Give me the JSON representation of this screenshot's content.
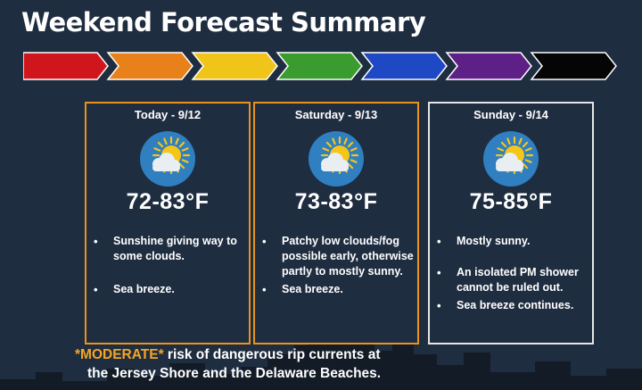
{
  "title": "Weekend Forecast Summary",
  "arrow_colors": [
    "#d0161d",
    "#e8811a",
    "#f0c419",
    "#3a9b2f",
    "#1f48c4",
    "#5e1f86",
    "#050505"
  ],
  "cards": [
    {
      "day": "Today - 9/12",
      "icon": "sun-cloud-icon",
      "temp": "72-83°F",
      "bullets": [
        "Sunshine giving way to some clouds.",
        "Sea breeze."
      ]
    },
    {
      "day": "Saturday - 9/13",
      "icon": "sun-cloud-icon",
      "temp": "73-83°F",
      "bullets": [
        "Patchy low clouds/fog possible early, otherwise partly to mostly sunny.",
        "Sea breeze."
      ]
    },
    {
      "day": "Sunday - 9/14",
      "icon": "sun-cloud-icon",
      "temp": "75-85°F",
      "bullets": [
        "Mostly sunny.",
        "An isolated PM shower cannot be ruled out.",
        "Sea breeze continues."
      ]
    }
  ],
  "warning": {
    "highlight": "*MODERATE*",
    "line1_rest": " risk of dangerous rip currents at",
    "line2": "the Jersey Shore and the Delaware Beaches."
  },
  "colors": {
    "background": "#1f2d40",
    "card_border_orange": "#e8941c",
    "card_border_white": "#e6e6e6",
    "highlight": "#f5a623"
  }
}
